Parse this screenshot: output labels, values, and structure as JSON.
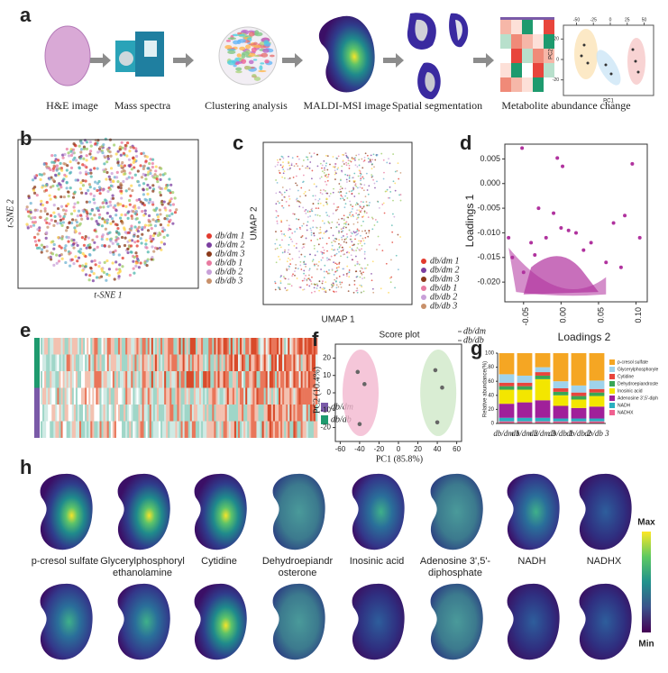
{
  "panel_a": {
    "label": "a",
    "steps": [
      "H&E image",
      "Mass spectra",
      "Clustering analysis",
      "MALDI-MSI image",
      "Spatial segmentation",
      "Metabolite abundance change"
    ],
    "inset": {
      "xlabel": "PC1",
      "ylabel": "PC2",
      "xticks": [
        -50,
        -25,
        0,
        25,
        50
      ],
      "xlim": [
        -60,
        60
      ],
      "yticks": [
        -20,
        0,
        20
      ],
      "ylim": [
        -30,
        30
      ]
    }
  },
  "panel_b": {
    "label": "b",
    "xlabel": "t-SNE 1",
    "ylabel": "t-SNE 2",
    "legend": [
      {
        "name": "db/dm 1",
        "color": "#e23a2e"
      },
      {
        "name": "db/dm 2",
        "color": "#7b3fa0"
      },
      {
        "name": "db/dm 3",
        "color": "#8b3a1a"
      },
      {
        "name": "db/db 1",
        "color": "#e87aa0"
      },
      {
        "name": "db/db 2",
        "color": "#c8a0d8"
      },
      {
        "name": "db/db 3",
        "color": "#c8906a"
      }
    ]
  },
  "panel_c": {
    "label": "c",
    "xlabel": "UMAP 1",
    "ylabel": "UMAP 2",
    "legend": [
      {
        "name": "db/dm 1",
        "color": "#e23a2e"
      },
      {
        "name": "db/dm 2",
        "color": "#7b3fa0"
      },
      {
        "name": "db/dm 3",
        "color": "#8b3a1a"
      },
      {
        "name": "db/db 1",
        "color": "#e87aa0"
      },
      {
        "name": "db/db 2",
        "color": "#c8a0d8"
      },
      {
        "name": "db/db 3",
        "color": "#c8906a"
      }
    ]
  },
  "panel_d": {
    "label": "d",
    "xlabel": "Loadings 2",
    "ylabel": "Loadings 1",
    "color": "#b0329e",
    "xlim": [
      -0.075,
      0.115
    ],
    "ylim": [
      -0.024,
      0.008
    ],
    "xticks": [
      -0.05,
      {
        "value": 0,
        "label": "0.00"
      },
      0.05,
      {
        "value": 0.1,
        "label": "0.10"
      }
    ],
    "yticks": [
      0.005,
      {
        "value": 0,
        "label": "0.000"
      },
      -0.005,
      {
        "value": -0.01,
        "label": "-0.010"
      },
      -0.015,
      {
        "value": -0.02,
        "label": "-0.020"
      }
    ],
    "x": [
      -0.052,
      -0.005,
      0.002,
      0.095,
      0.105,
      0.085,
      0.07,
      -0.07,
      -0.065,
      -0.03,
      -0.01,
      0.0,
      0.01,
      0.02,
      0.04,
      0.06,
      0.08,
      -0.04,
      -0.05,
      -0.02,
      0.03,
      -0.035
    ],
    "y": [
      0.0072,
      0.0052,
      0.0035,
      0.004,
      -0.011,
      -0.0065,
      -0.008,
      -0.011,
      -0.015,
      -0.005,
      -0.006,
      -0.009,
      -0.0095,
      -0.01,
      -0.012,
      -0.016,
      -0.017,
      -0.012,
      -0.018,
      -0.011,
      -0.0135,
      -0.0145
    ]
  },
  "panel_e": {
    "label": "e",
    "legend": [
      {
        "name": "db/dm",
        "color": "#7a5aa8"
      },
      {
        "name": "db/db",
        "color": "#1e9a6e"
      }
    ]
  },
  "panel_f": {
    "label": "f",
    "title": "Score plot",
    "xlabel": "PC1 (85.8%)",
    "ylabel": "PC2 (10.4%)",
    "xlim": [
      -65,
      65
    ],
    "ylim": [
      -28,
      28
    ],
    "xticks": [
      -60,
      -40,
      -20,
      0,
      20,
      40,
      60
    ],
    "yticks": [
      -20,
      -10,
      0,
      10,
      20
    ],
    "series": [
      {
        "name": "db/dm",
        "color": "#f2b8cf",
        "x": [
          -42,
          -35,
          -40
        ],
        "y": [
          12,
          5,
          -18
        ]
      },
      {
        "name": "db/db",
        "color": "#cfe8c8",
        "x": [
          38,
          45,
          40
        ],
        "y": [
          13,
          3,
          -17
        ]
      }
    ]
  },
  "panel_g": {
    "label": "g",
    "ylabel": "Relative abundance(%)",
    "ylim": [
      0,
      100
    ],
    "yticks": [
      0,
      20,
      40,
      60,
      80,
      100
    ],
    "categories": [
      "db/dm 1",
      "db/dm 2",
      "db/dm 3",
      "db/db 1",
      "db/db 2",
      "db/db 3"
    ],
    "series": [
      {
        "name": "p-cresol sulfate",
        "color": "#f5a623",
        "values": [
          30,
          32,
          20,
          40,
          46,
          39
        ]
      },
      {
        "name": "Glycerylphosphoryle",
        "color": "#9fd3ec",
        "values": [
          12,
          10,
          7,
          10,
          10,
          12
        ]
      },
      {
        "name": "Cytidine",
        "color": "#e8453c",
        "values": [
          5,
          5,
          5,
          5,
          5,
          5
        ]
      },
      {
        "name": "Dehydroepiandroste",
        "color": "#3aa655",
        "values": [
          5,
          5,
          5,
          5,
          5,
          5
        ]
      },
      {
        "name": "Inosinic acid",
        "color": "#f3e600",
        "values": [
          20,
          18,
          30,
          15,
          12,
          15
        ]
      },
      {
        "name": "Adenosine 3',5'-diph",
        "color": "#a0209a",
        "values": [
          20,
          22,
          25,
          18,
          15,
          17
        ]
      },
      {
        "name": "NADH",
        "color": "#2ab0c0",
        "values": [
          5,
          5,
          5,
          4,
          4,
          4
        ]
      },
      {
        "name": "NADHX",
        "color": "#f06090",
        "values": [
          3,
          3,
          3,
          3,
          3,
          3
        ]
      }
    ]
  },
  "panel_h": {
    "label": "h",
    "metabolites": [
      [
        "p-cresol sulfate"
      ],
      [
        "Glycerylphosphoryl",
        "ethanolamine"
      ],
      [
        "Cytidine"
      ],
      [
        "Dehydroepiandr",
        "osterone"
      ],
      [
        "Inosinic acid"
      ],
      [
        "Adenosine 3',5'-",
        "diphosphate"
      ],
      [
        "NADH"
      ],
      [
        "NADHX"
      ]
    ],
    "colorbar": {
      "max": "Max",
      "min": "Min"
    }
  }
}
